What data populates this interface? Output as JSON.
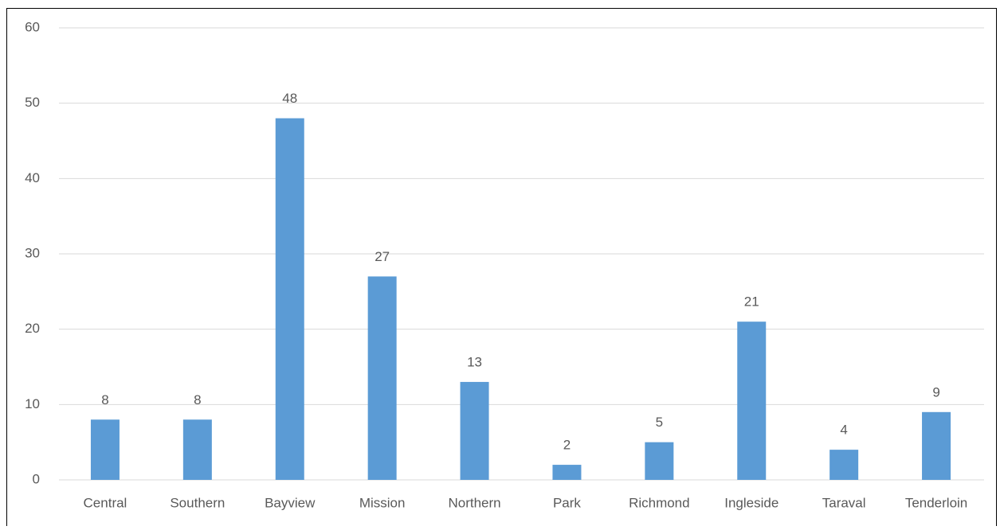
{
  "chart_data": {
    "type": "bar",
    "categories": [
      "Central",
      "Southern",
      "Bayview",
      "Mission",
      "Northern",
      "Park",
      "Richmond",
      "Ingleside",
      "Taraval",
      "Tenderloin"
    ],
    "values": [
      8,
      8,
      48,
      27,
      13,
      2,
      5,
      21,
      4,
      9
    ],
    "color": "#5b9bd5",
    "ylim": [
      0,
      60
    ],
    "yticks": [
      0,
      10,
      20,
      30,
      40,
      50,
      60
    ],
    "grid": true,
    "data_labels": true
  }
}
